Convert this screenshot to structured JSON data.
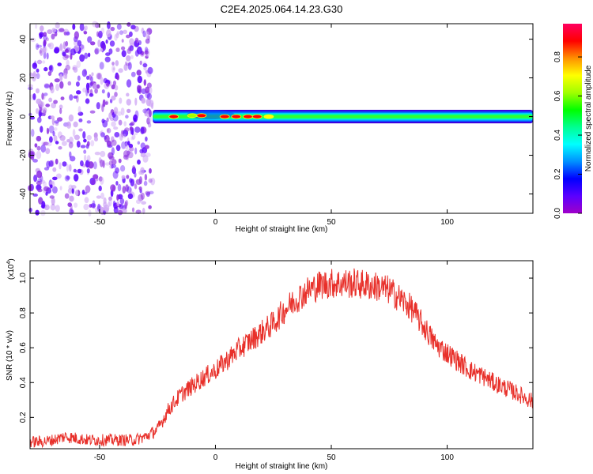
{
  "title": "C2E4.2025.064.14.23.G30",
  "chart_data": [
    {
      "type": "heatmap",
      "xlabel": "Height of straight line (km)",
      "ylabel": "Frequency (Hz)",
      "xlim": [
        -80,
        137
      ],
      "ylim": [
        -50,
        48
      ],
      "xticks": [
        -50,
        0,
        50,
        100
      ],
      "yticks": [
        -40,
        -20,
        0,
        20,
        40
      ],
      "colorbar": {
        "label": "Normalized spectral amplitude",
        "range": [
          0,
          0.97
        ],
        "ticks": [
          0.0,
          0.2,
          0.4,
          0.6,
          0.8
        ],
        "tick_labels": [
          "0.0",
          "0.2",
          "0.4",
          "0.6",
          "0.8"
        ],
        "colors": [
          "#a000c8",
          "#5a00ff",
          "#0000ff",
          "#0090ff",
          "#00ffff",
          "#00ff90",
          "#00ff00",
          "#a0ff00",
          "#ffff00",
          "#ff9000",
          "#ff0000",
          "#ff0060"
        ]
      },
      "noise_region": {
        "x": [
          -80,
          -27
        ],
        "freq": [
          -50,
          48
        ],
        "amplitude": 0.1
      },
      "signal_band": {
        "x_start": -27,
        "x_end": 137,
        "center_freq": 0,
        "halfwidth_hz": 2.5
      },
      "peak_points": [
        {
          "x": -18,
          "freq": 0,
          "amplitude": 0.9
        },
        {
          "x": -10,
          "freq": 0.5,
          "amplitude": 0.6
        },
        {
          "x": -6,
          "freq": 0.5,
          "amplitude": 0.9
        },
        {
          "x": 4,
          "freq": 0,
          "amplitude": 0.9
        },
        {
          "x": 9,
          "freq": 0,
          "amplitude": 0.9
        },
        {
          "x": 14,
          "freq": 0,
          "amplitude": 0.85
        },
        {
          "x": 18,
          "freq": 0,
          "amplitude": 0.9
        },
        {
          "x": 23,
          "freq": 0,
          "amplitude": 0.7
        }
      ]
    },
    {
      "type": "line",
      "xlabel": "Height of straight line (km)",
      "ylabel": "SNR (10 * v/v)",
      "y_multiplier": "(x10^4)",
      "y_multiplier_base": "(x10",
      "y_multiplier_exp": "4",
      "xlim": [
        -80,
        137
      ],
      "ylim": [
        0.02,
        1.1
      ],
      "xticks": [
        -50,
        0,
        50,
        100
      ],
      "yticks": [
        0.2,
        0.4,
        0.6,
        0.8,
        1.0
      ],
      "series": [
        {
          "color": "#e8302a",
          "x": [
            -80,
            -75,
            -70,
            -65,
            -60,
            -55,
            -50,
            -45,
            -40,
            -35,
            -30,
            -25,
            -20,
            -15,
            -10,
            -5,
            0,
            5,
            10,
            15,
            20,
            25,
            30,
            35,
            40,
            45,
            50,
            55,
            60,
            65,
            70,
            75,
            80,
            85,
            90,
            95,
            100,
            105,
            110,
            115,
            120,
            125,
            130,
            137
          ],
          "values": [
            0.06,
            0.06,
            0.07,
            0.09,
            0.08,
            0.07,
            0.07,
            0.07,
            0.07,
            0.07,
            0.09,
            0.13,
            0.25,
            0.33,
            0.38,
            0.43,
            0.47,
            0.53,
            0.59,
            0.64,
            0.69,
            0.74,
            0.82,
            0.88,
            0.93,
            0.96,
            0.97,
            0.97,
            0.97,
            0.96,
            0.95,
            0.93,
            0.88,
            0.82,
            0.72,
            0.62,
            0.57,
            0.52,
            0.47,
            0.44,
            0.4,
            0.37,
            0.34,
            0.29
          ],
          "noise_amplitude": 0.06
        }
      ]
    }
  ]
}
